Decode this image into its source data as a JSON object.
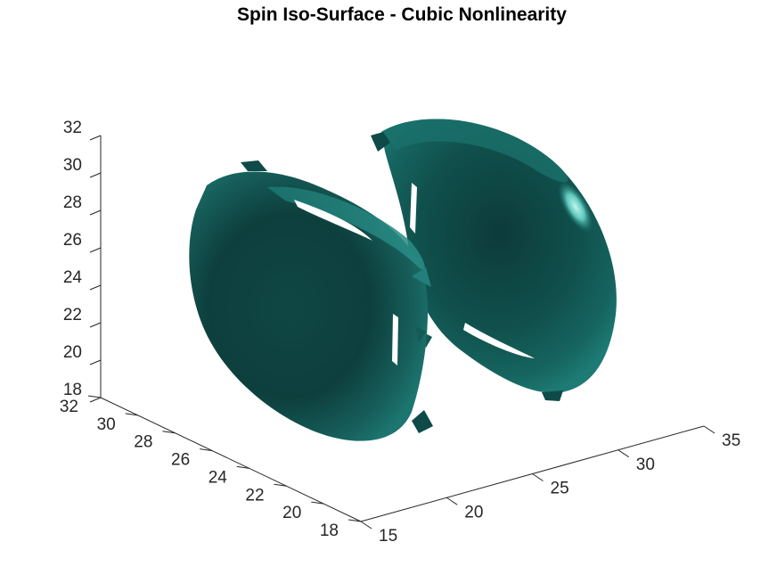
{
  "chart_data": {
    "type": "isosurface-3d",
    "title": "Spin Iso-Surface - Cubic Nonlinearity",
    "surface_color": "#1b6b66",
    "x_axis": {
      "ticks": [
        15,
        20,
        25,
        30,
        35
      ],
      "lim": [
        15,
        35
      ]
    },
    "y_axis": {
      "ticks": [
        18,
        20,
        22,
        24,
        26,
        28,
        30,
        32
      ],
      "lim": [
        18,
        32
      ]
    },
    "z_axis": {
      "ticks": [
        18,
        20,
        22,
        24,
        26,
        28,
        30,
        32
      ],
      "lim": [
        18,
        32
      ]
    },
    "grid": false,
    "lobes": [
      {
        "name": "",
        "center": [
          20,
          25,
          25
        ]
      },
      {
        "name": "",
        "center": [
          30,
          25,
          25
        ]
      }
    ]
  }
}
